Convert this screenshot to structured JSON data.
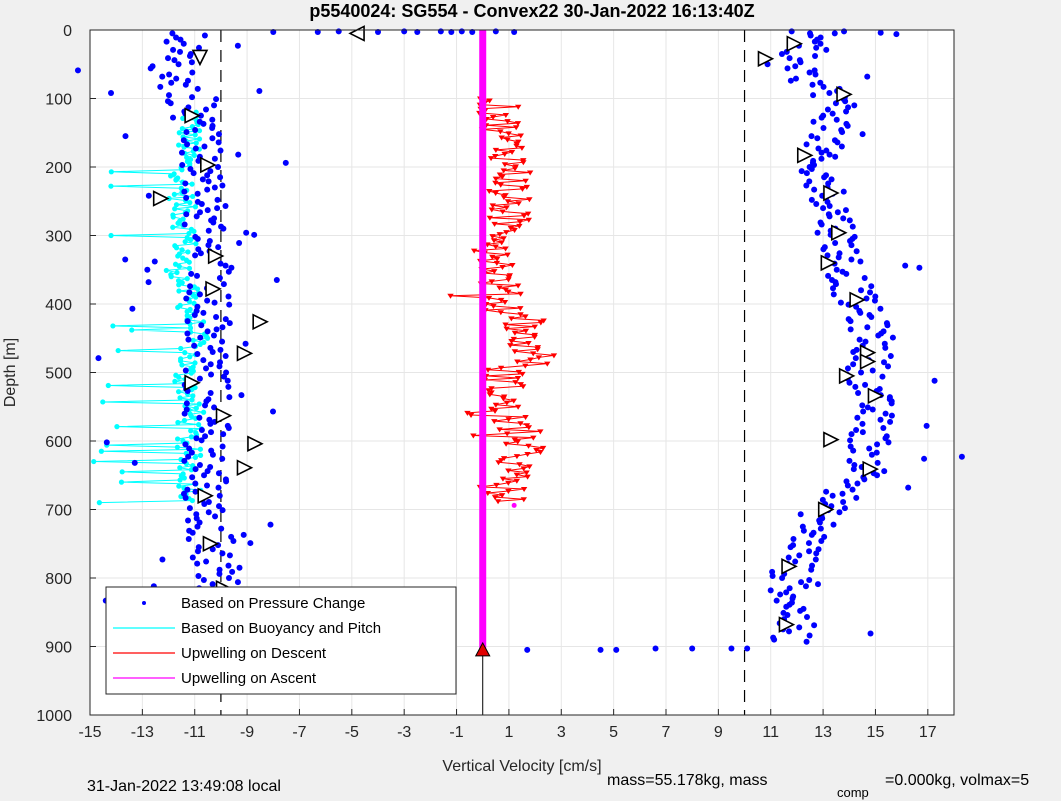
{
  "chart_data": {
    "type": "scatter",
    "title": "p5540024: SG554 - Convex22 30-Jan-2022 16:13:40Z",
    "xlabel": "Vertical Velocity [cm/s]",
    "ylabel": "Depth [m]",
    "xlim": [
      -15,
      18
    ],
    "ylim": [
      0,
      1000
    ],
    "y_reversed": true,
    "grid": true,
    "xticks": [
      -15,
      -13,
      -11,
      -9,
      -7,
      -5,
      -3,
      -1,
      1,
      3,
      5,
      7,
      9,
      11,
      13,
      15,
      17
    ],
    "yticks": [
      0,
      100,
      200,
      300,
      400,
      500,
      600,
      700,
      800,
      900,
      1000
    ],
    "reference_lines": [
      {
        "orientation": "vertical",
        "x": -10,
        "style": "dashed",
        "color": "#000000"
      },
      {
        "orientation": "vertical",
        "x": 10,
        "style": "dashed",
        "color": "#000000"
      }
    ],
    "legend_position": "bottom-left",
    "series": [
      {
        "name": "Based on Pressure Change",
        "marker": "dot",
        "color": "#0000ff",
        "descent": {
          "depth": [
            0,
            50,
            100,
            150,
            200,
            250,
            300,
            350,
            400,
            450,
            500,
            550,
            600,
            650,
            700,
            750,
            800,
            850,
            900
          ],
          "velocity": [
            -11,
            -12,
            -11.2,
            -10.8,
            -10.8,
            -10.6,
            -10.5,
            -10.3,
            -10.5,
            -10.4,
            -10.6,
            -10.5,
            -10.5,
            -10.6,
            -10.6,
            -10.3,
            -10.0,
            -10.7,
            -10.9
          ]
        },
        "ascent": {
          "depth": [
            900,
            850,
            800,
            750,
            700,
            650,
            600,
            550,
            500,
            450,
            400,
            350,
            300,
            250,
            200,
            150,
            100,
            50,
            0
          ],
          "velocity": [
            11.8,
            11.9,
            11.7,
            12.4,
            13.0,
            14.7,
            14.8,
            14.9,
            14.7,
            15.0,
            14.3,
            13.9,
            13.6,
            13.4,
            12.4,
            13.3,
            13.6,
            11.5,
            13.5
          ]
        }
      },
      {
        "name": "Based on Buoyancy and Pitch",
        "marker": "line-dot",
        "color": "#00ffff",
        "depth": [
          120,
          150,
          200,
          250,
          300,
          350,
          400,
          450,
          500,
          550,
          600,
          650,
          690
        ],
        "velocity": [
          -11.1,
          -11.2,
          -11.4,
          -11.5,
          -11.3,
          -11.6,
          -11.2,
          -11.0,
          -11.4,
          -11.1,
          -11.3,
          -11.2,
          -11.0
        ]
      },
      {
        "name": "Upwelling on Descent",
        "marker": "triangle-down",
        "color": "#ff0000",
        "depth": [
          100,
          150,
          200,
          250,
          300,
          350,
          400,
          420,
          450,
          480,
          500,
          550,
          600,
          650,
          690
        ],
        "velocity": [
          0.5,
          0.8,
          1.2,
          1.0,
          1.0,
          0.6,
          0.7,
          1.8,
          1.4,
          2.2,
          0.9,
          0.7,
          1.7,
          1.0,
          0.8
        ]
      },
      {
        "name": "Upwelling on Ascent",
        "marker": "line",
        "color": "#ff00ff",
        "depth": [
          0,
          905
        ],
        "velocity": [
          0,
          0
        ]
      }
    ]
  },
  "footer": {
    "local_time": "31-Jan-2022 13:49:08 local",
    "mass_text": "mass=55.178kg, mass",
    "comp_subscript": "comp",
    "mass_comp_text": "=0.000kg, volmax=5"
  },
  "colors": {
    "pressure": "#0000ff",
    "buoyancy": "#00ffff",
    "upwell_descent": "#ff0000",
    "upwell_ascent": "#ff00ff",
    "marker_red": "#e00000"
  }
}
